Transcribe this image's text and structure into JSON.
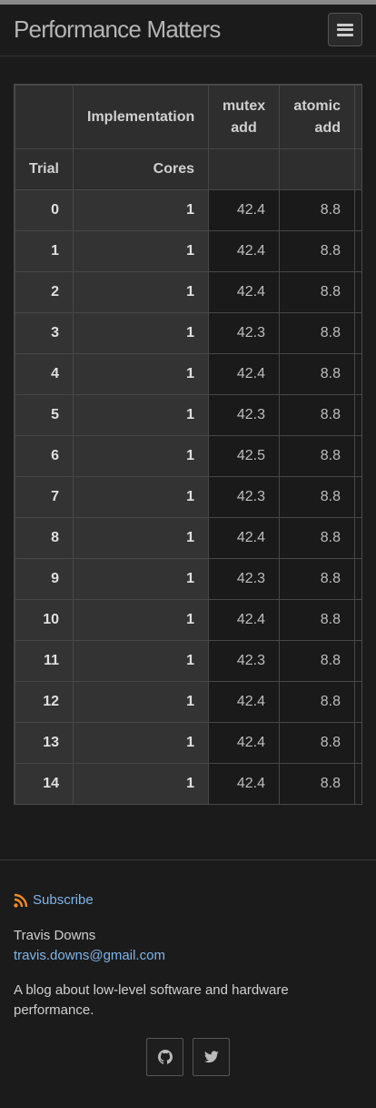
{
  "header": {
    "site_title": "Performance Matters",
    "menu_icon": "hamburger-menu-icon"
  },
  "table": {
    "group_header": "Implementation",
    "columns": [
      "mutex add",
      "atomic add",
      ""
    ],
    "row_header_trial": "Trial",
    "row_header_cores": "Cores",
    "rows": [
      {
        "trial": "0",
        "cores": "1",
        "values": [
          "42.4",
          "8.8"
        ]
      },
      {
        "trial": "1",
        "cores": "1",
        "values": [
          "42.4",
          "8.8"
        ]
      },
      {
        "trial": "2",
        "cores": "1",
        "values": [
          "42.4",
          "8.8"
        ]
      },
      {
        "trial": "3",
        "cores": "1",
        "values": [
          "42.3",
          "8.8"
        ]
      },
      {
        "trial": "4",
        "cores": "1",
        "values": [
          "42.4",
          "8.8"
        ]
      },
      {
        "trial": "5",
        "cores": "1",
        "values": [
          "42.3",
          "8.8"
        ]
      },
      {
        "trial": "6",
        "cores": "1",
        "values": [
          "42.5",
          "8.8"
        ]
      },
      {
        "trial": "7",
        "cores": "1",
        "values": [
          "42.3",
          "8.8"
        ]
      },
      {
        "trial": "8",
        "cores": "1",
        "values": [
          "42.4",
          "8.8"
        ]
      },
      {
        "trial": "9",
        "cores": "1",
        "values": [
          "42.3",
          "8.8"
        ]
      },
      {
        "trial": "10",
        "cores": "1",
        "values": [
          "42.4",
          "8.8"
        ]
      },
      {
        "trial": "11",
        "cores": "1",
        "values": [
          "42.3",
          "8.8"
        ]
      },
      {
        "trial": "12",
        "cores": "1",
        "values": [
          "42.4",
          "8.8"
        ]
      },
      {
        "trial": "13",
        "cores": "1",
        "values": [
          "42.4",
          "8.8"
        ]
      },
      {
        "trial": "14",
        "cores": "1",
        "values": [
          "42.4",
          "8.8"
        ]
      }
    ]
  },
  "footer": {
    "subscribe_label": "Subscribe",
    "subscribe_icon": "rss-icon",
    "author": "Travis Downs",
    "email": "travis.downs@gmail.com",
    "description": "A blog about low-level software and hardware performance.",
    "social_icons": [
      "github-icon",
      "twitter-icon"
    ]
  },
  "colors": {
    "background": "#1b1b1b",
    "link": "#7fb4ea",
    "rss": "#f08a24"
  }
}
